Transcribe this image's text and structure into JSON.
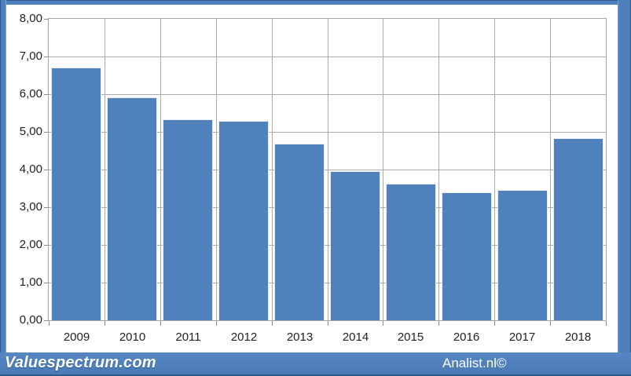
{
  "chart_data": {
    "type": "bar",
    "title": "",
    "categories": [
      "2009",
      "2010",
      "2011",
      "2012",
      "2013",
      "2014",
      "2015",
      "2016",
      "2017",
      "2018"
    ],
    "values": [
      6.71,
      5.92,
      5.34,
      5.29,
      4.69,
      3.96,
      3.62,
      3.4,
      3.46,
      4.84
    ],
    "xlabel": "",
    "ylabel": "",
    "ylim": [
      0,
      8
    ],
    "ytick_step": 1,
    "ytick_labels": [
      "0,00",
      "1,00",
      "2,00",
      "3,00",
      "4,00",
      "5,00",
      "6,00",
      "7,00",
      "8,00"
    ],
    "legend": null,
    "grid": {
      "horizontal": true,
      "vertical_category_boundaries": true
    },
    "colors": {
      "bar_fill": "#4f81bd",
      "bar_border": "#e9eef5",
      "gridline": "#ababab",
      "plot_border": "#a6a6a6",
      "tick": "#8c8c8c",
      "axis_text": "#1f1f1f",
      "plot_background": "#ffffff"
    }
  },
  "frame": {
    "band_color": "#4e80bd",
    "edge_color": "#2e5c8a",
    "background": "#ffffff"
  },
  "footer": {
    "left_text": "Valuespectrum.com",
    "right_text": "Analist.nl©",
    "text_color": "#ffffff"
  }
}
